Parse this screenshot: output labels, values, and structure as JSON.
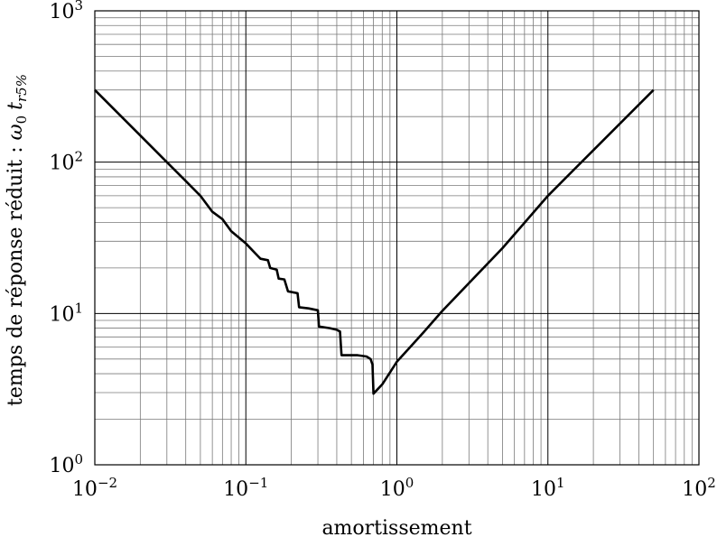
{
  "chart_data": {
    "type": "line",
    "title": "",
    "xlabel": "amortissement",
    "ylabel": {
      "text": "temps de réponse réduit : ",
      "symbol": "ω",
      "symbol_sub": "0",
      "var": "t",
      "var_sub": "r5%"
    },
    "x_scale": "log",
    "y_scale": "log",
    "xlim": [
      0.01,
      100
    ],
    "ylim": [
      1,
      1000
    ],
    "grid": true,
    "x_ticks": [
      {
        "base": "10",
        "exp": "−2",
        "value": 0.01
      },
      {
        "base": "10",
        "exp": "−1",
        "value": 0.1
      },
      {
        "base": "10",
        "exp": "0",
        "value": 1
      },
      {
        "base": "10",
        "exp": "1",
        "value": 10
      },
      {
        "base": "10",
        "exp": "2",
        "value": 100
      }
    ],
    "y_ticks": [
      {
        "base": "10",
        "exp": "0",
        "value": 1
      },
      {
        "base": "10",
        "exp": "1",
        "value": 10
      },
      {
        "base": "10",
        "exp": "2",
        "value": 100
      },
      {
        "base": "10",
        "exp": "3",
        "value": 1000
      }
    ],
    "series": [
      {
        "color": "#000000",
        "x": [
          0.01,
          0.02,
          0.03,
          0.04,
          0.05,
          0.06,
          0.07,
          0.08,
          0.1,
          0.12,
          0.125,
          0.14,
          0.145,
          0.16,
          0.165,
          0.18,
          0.19,
          0.22,
          0.225,
          0.26,
          0.3,
          0.305,
          0.36,
          0.4,
          0.42,
          0.43,
          0.55,
          0.63,
          0.67,
          0.69,
          0.7,
          0.8,
          1.0,
          1.5,
          2.0,
          5.0,
          10.0,
          20.0,
          50.0
        ],
        "y": [
          300,
          150,
          100,
          75,
          60,
          47,
          42,
          35,
          29,
          24,
          23,
          22.5,
          20,
          19.5,
          17,
          16.8,
          14,
          13.6,
          11,
          10.8,
          10.5,
          8.2,
          8.0,
          7.8,
          7.6,
          5.3,
          5.3,
          5.2,
          5.0,
          4.6,
          2.95,
          3.4,
          4.8,
          7.5,
          10.4,
          27,
          60,
          120,
          300
        ]
      }
    ]
  }
}
